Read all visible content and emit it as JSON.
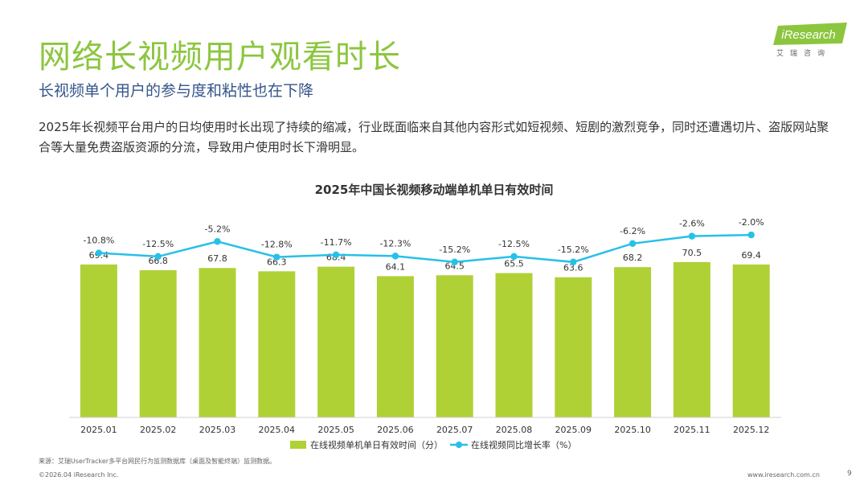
{
  "header": {
    "title": "网络长视频用户观看时长",
    "subtitle": "长视频单个用户的参与度和粘性也在下降",
    "description": "2025年长视频平台用户的日均使用时长出现了持续的缩减，行业既面临来自其他内容形式如短视频、短剧的激烈竞争，同时还遭遇切片、盗版网站聚合等大量免费盗版资源的分流，导致用户使用时长下滑明显。"
  },
  "logo": {
    "text": "iResearch",
    "subtext": "艾瑞咨询"
  },
  "colors": {
    "accent_green": "#8cc63f",
    "bar_green": "#afd136",
    "line_blue": "#27c0e8",
    "subtitle_blue": "#35558a"
  },
  "chart_data": {
    "type": "bar",
    "title": "2025年中国长视频移动端单机单日有效时间",
    "categories": [
      "2025.01",
      "2025.02",
      "2025.03",
      "2025.04",
      "2025.05",
      "2025.06",
      "2025.07",
      "2025.08",
      "2025.09",
      "2025.10",
      "2025.11",
      "2025.12"
    ],
    "series": [
      {
        "name": "在线视频单机单日有效时间（分）",
        "kind": "bar",
        "values": [
          69.4,
          66.8,
          67.8,
          66.3,
          68.4,
          64.1,
          64.5,
          65.5,
          63.6,
          68.2,
          70.5,
          69.4
        ],
        "labels": [
          "69.4",
          "66.8",
          "67.8",
          "66.3",
          "68.4",
          "64.1",
          "64.5",
          "65.5",
          "63.6",
          "68.2",
          "70.5",
          "69.4"
        ]
      },
      {
        "name": "在线视频同比增长率（%）",
        "kind": "line",
        "values": [
          -10.8,
          -12.5,
          -5.2,
          -12.8,
          -11.7,
          -12.3,
          -15.2,
          -12.5,
          -15.2,
          -6.2,
          -2.6,
          -2.0
        ],
        "labels": [
          "-10.8%",
          "-12.5%",
          "-5.2%",
          "-12.8%",
          "-11.7%",
          "-12.3%",
          "-15.2%",
          "-12.5%",
          "-15.2%",
          "-6.2%",
          "-2.6%",
          "-2.0%"
        ]
      }
    ],
    "xlabel": "",
    "ylabel": "",
    "ylim": [
      0,
      80
    ],
    "y2lim": [
      -40,
      0
    ],
    "legend": "bottom"
  },
  "footer": {
    "source": "来源：艾瑞UserTracker多平台网民行为监测数据库（桌面及智能终端）监测数据。",
    "copyright": "©2026.04 iResearch Inc.",
    "website": "www.iresearch.com.cn",
    "page": "9"
  }
}
